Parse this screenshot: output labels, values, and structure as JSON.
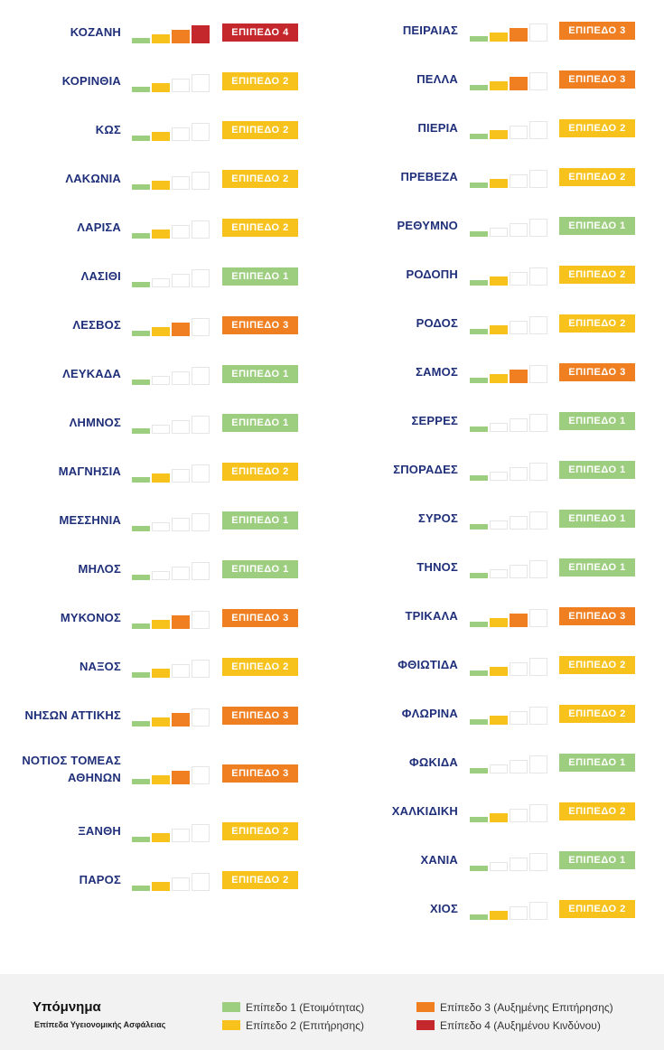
{
  "colors": {
    "level1": "#9dce7f",
    "level2": "#f7c21c",
    "level3": "#ef7f21",
    "level4": "#c4282d",
    "off": "#ffffff"
  },
  "level_labels": {
    "1": "ΕΠΙΠΕΔΟ 1",
    "2": "ΕΠΙΠΕΔΟ 2",
    "3": "ΕΠΙΠΕΔΟ 3",
    "4": "ΕΠΙΠΕΔΟ 4"
  },
  "regions_left": [
    {
      "name": "ΚΟΖΑΝΗ",
      "level": 4
    },
    {
      "name": "ΚΟΡΙΝΘΙΑ",
      "level": 2
    },
    {
      "name": "ΚΩΣ",
      "level": 2
    },
    {
      "name": "ΛΑΚΩΝΙΑ",
      "level": 2
    },
    {
      "name": "ΛΑΡΙΣΑ",
      "level": 2
    },
    {
      "name": "ΛΑΣΙΘΙ",
      "level": 1
    },
    {
      "name": "ΛΕΣΒΟΣ",
      "level": 3
    },
    {
      "name": "ΛΕΥΚΑΔΑ",
      "level": 1
    },
    {
      "name": "ΛΗΜΝΟΣ",
      "level": 1
    },
    {
      "name": "ΜΑΓΝΗΣΙΑ",
      "level": 2
    },
    {
      "name": "ΜΕΣΣΗΝΙΑ",
      "level": 1
    },
    {
      "name": "ΜΗΛΟΣ",
      "level": 1
    },
    {
      "name": "ΜΥΚΟΝΟΣ",
      "level": 3
    },
    {
      "name": "ΝΑΞΟΣ",
      "level": 2
    },
    {
      "name": "ΝΗΣΩΝ ΑΤΤΙΚΗΣ",
      "level": 3
    },
    {
      "name": "ΝΟΤΙΟΣ ΤΟΜΕΑΣ ΑΘΗΝΩΝ",
      "level": 3
    },
    {
      "name": "ΞΑΝΘΗ",
      "level": 2
    },
    {
      "name": "ΠΑΡΟΣ",
      "level": 2
    }
  ],
  "regions_right": [
    {
      "name": "ΠΕΙΡΑΙΑΣ",
      "level": 3
    },
    {
      "name": "ΠΕΛΛΑ",
      "level": 3
    },
    {
      "name": "ΠΙΕΡΙΑ",
      "level": 2
    },
    {
      "name": "ΠΡΕΒΕΖΑ",
      "level": 2
    },
    {
      "name": "ΡΕΘΥΜΝΟ",
      "level": 1
    },
    {
      "name": "ΡΟΔΟΠΗ",
      "level": 2
    },
    {
      "name": "ΡΟΔΟΣ",
      "level": 2
    },
    {
      "name": "ΣΑΜΟΣ",
      "level": 3
    },
    {
      "name": "ΣΕΡΡΕΣ",
      "level": 1
    },
    {
      "name": "ΣΠΟΡΑΔΕΣ",
      "level": 1
    },
    {
      "name": "ΣΥΡΟΣ",
      "level": 1
    },
    {
      "name": "ΤΗΝΟΣ",
      "level": 1
    },
    {
      "name": "ΤΡΙΚΑΛΑ",
      "level": 3
    },
    {
      "name": "ΦΘΙΩΤΙΔΑ",
      "level": 2
    },
    {
      "name": "ΦΛΩΡΙΝΑ",
      "level": 2
    },
    {
      "name": "ΦΩΚΙΔΑ",
      "level": 1
    },
    {
      "name": "ΧΑΛΚΙΔΙΚΗ",
      "level": 2
    },
    {
      "name": "ΧΑΝΙΑ",
      "level": 1
    },
    {
      "name": "ΧΙΟΣ",
      "level": 2
    }
  ],
  "legend": {
    "title": "Υπόμνημα",
    "subtitle": "Επίπεδα Υγειονομικής Ασφάλειας",
    "items": [
      {
        "level": 1,
        "label": "Επίπεδο 1 (Ετοιμότητας)"
      },
      {
        "level": 2,
        "label": "Επίπεδο 2 (Επιτήρησης)"
      },
      {
        "level": 3,
        "label": "Επίπεδο 3 (Αυξημένης Επιτήρησης)"
      },
      {
        "level": 4,
        "label": "Επίπεδο 4 (Αυξημένου Κινδύνου)"
      }
    ]
  }
}
